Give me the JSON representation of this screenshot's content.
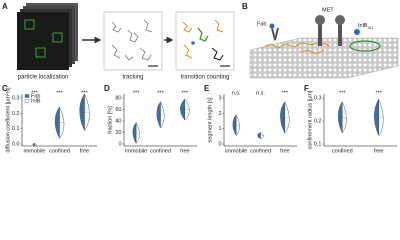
{
  "panels": {
    "a": {
      "letter": "A",
      "captions": [
        "particle localization",
        "tracking",
        "transition counting"
      ]
    },
    "b": {
      "letter": "B",
      "labels": {
        "fab": "Fab",
        "met": "MET",
        "inlb": "InlB",
        "inlb_sub": "321"
      }
    },
    "c": {
      "letter": "C",
      "y_label": "diffusion coefficient [µm²/s]",
      "yticks": [
        "0.0",
        "0.1",
        "0.2",
        "0.3"
      ],
      "categories": [
        "immobile",
        "confined",
        "free"
      ],
      "significance": [
        "***",
        "***",
        "***"
      ],
      "legend": [
        "Fab",
        "InlB"
      ]
    },
    "d": {
      "letter": "D",
      "y_label": "fraction [%]",
      "yticks": [
        "0",
        "20",
        "40",
        "60",
        "80"
      ],
      "categories": [
        "immobile",
        "confined",
        "free"
      ],
      "significance": [
        "***",
        "***",
        "***"
      ]
    },
    "e": {
      "letter": "E",
      "y_label": "segment length [s]",
      "yticks": [
        "0",
        "1",
        "2",
        "3"
      ],
      "categories": [
        "immobile",
        "confined",
        "free"
      ],
      "significance": [
        "n.s.",
        "n.s.",
        "***"
      ]
    },
    "f": {
      "letter": "F",
      "y_label": "confinement radius [µm]",
      "yticks": [
        "0.1",
        "0.2",
        "0.3"
      ],
      "categories": [
        "confined",
        "free"
      ],
      "significance": [
        "***",
        "***"
      ]
    }
  }
}
